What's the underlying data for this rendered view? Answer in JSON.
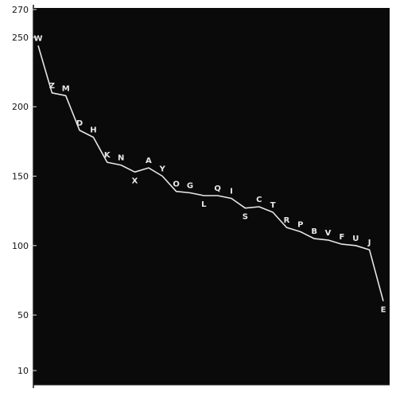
{
  "chart_data": {
    "type": "line",
    "title": "",
    "xlabel": "",
    "ylabel": "",
    "ylim": [
      10,
      270
    ],
    "y_ticks": [
      {
        "value": 270,
        "label": "270"
      },
      {
        "value": 250,
        "label": "250"
      },
      {
        "value": 200,
        "label": "200"
      },
      {
        "value": 150,
        "label": "150"
      },
      {
        "value": 100,
        "label": "100"
      },
      {
        "value": 50,
        "label": "50"
      },
      {
        "value": 10,
        "label": "10"
      }
    ],
    "grid": false,
    "background_color": "#0a0a0a",
    "line_color": "#e6e6e6",
    "series": [
      {
        "points": [
          {
            "label": "W",
            "value": 244
          },
          {
            "label": "Z",
            "value": 210
          },
          {
            "label": "M",
            "value": 208
          },
          {
            "label": "D",
            "value": 183
          },
          {
            "label": "H",
            "value": 178
          },
          {
            "label": "K",
            "value": 160
          },
          {
            "label": "N",
            "value": 158
          },
          {
            "label": "X",
            "value": 153
          },
          {
            "label": "A",
            "value": 156
          },
          {
            "label": "Y",
            "value": 150
          },
          {
            "label": "O",
            "value": 139
          },
          {
            "label": "G",
            "value": 138
          },
          {
            "label": "L",
            "value": 136
          },
          {
            "label": "Q",
            "value": 136
          },
          {
            "label": "I",
            "value": 134
          },
          {
            "label": "S",
            "value": 127
          },
          {
            "label": "C",
            "value": 128
          },
          {
            "label": "T",
            "value": 124
          },
          {
            "label": "R",
            "value": 113
          },
          {
            "label": "P",
            "value": 110
          },
          {
            "label": "B",
            "value": 105
          },
          {
            "label": "V",
            "value": 104
          },
          {
            "label": "F",
            "value": 101
          },
          {
            "label": "U",
            "value": 100
          },
          {
            "label": "J",
            "value": 97
          },
          {
            "label": "E",
            "value": 60
          }
        ]
      }
    ]
  }
}
